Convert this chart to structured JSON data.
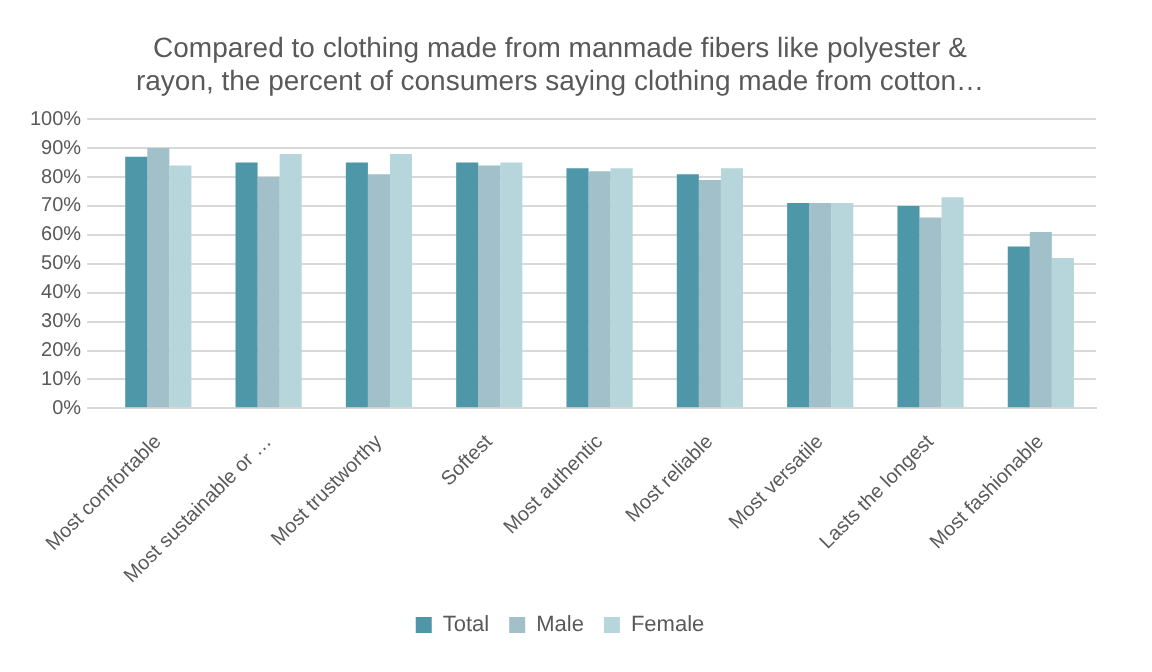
{
  "chart_data": {
    "type": "bar",
    "title": [
      "Compared to clothing made from manmade fibers like polyester &",
      "rayon, the percent of consumers saying clothing made from cotton…"
    ],
    "categories": [
      "Most comfortable",
      "Most sustainable or …",
      "Most trustworthy",
      "Softest",
      "Most authentic",
      "Most reliable",
      "Most versatile",
      "Lasts the longest",
      "Most fashionable"
    ],
    "series": [
      {
        "name": "Total",
        "color": "#4e97a8",
        "values": [
          87,
          85,
          85,
          85,
          83,
          81,
          71,
          70,
          56
        ]
      },
      {
        "name": "Male",
        "color": "#a2c0c9",
        "values": [
          90,
          80,
          81,
          84,
          82,
          79,
          71,
          66,
          61
        ]
      },
      {
        "name": "Female",
        "color": "#b7d6dc",
        "values": [
          84,
          88,
          88,
          85,
          83,
          83,
          71,
          73,
          52
        ]
      }
    ],
    "ylim": [
      0,
      100
    ],
    "yticks": [
      {
        "value": 0,
        "label": "0%"
      },
      {
        "value": 10,
        "label": "10%"
      },
      {
        "value": 20,
        "label": "20%"
      },
      {
        "value": 30,
        "label": "30%"
      },
      {
        "value": 40,
        "label": "40%"
      },
      {
        "value": 50,
        "label": "50%"
      },
      {
        "value": 60,
        "label": "60%"
      },
      {
        "value": 70,
        "label": "70%"
      },
      {
        "value": 80,
        "label": "80%"
      },
      {
        "value": 90,
        "label": "90%"
      },
      {
        "value": 100,
        "label": "100%"
      }
    ],
    "grid": "y",
    "legend": "bottom"
  }
}
